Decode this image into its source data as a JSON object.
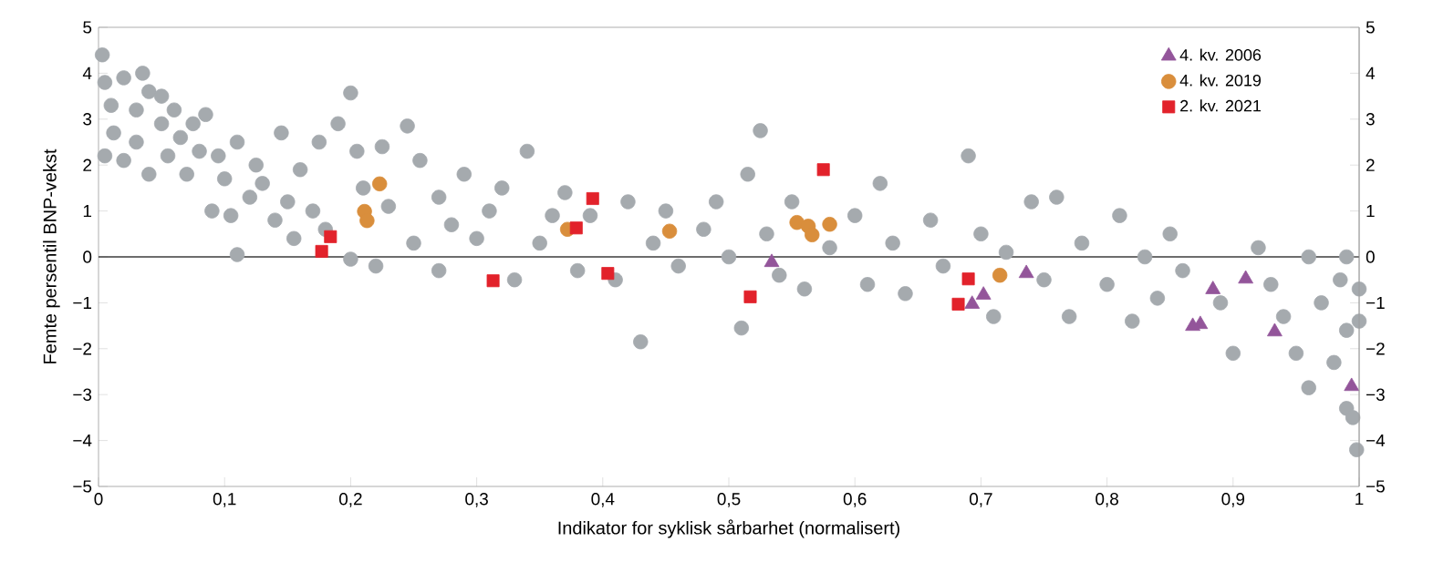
{
  "chart_data": {
    "type": "scatter",
    "xlabel": "Indikator for syklisk sårbarhet (normalisert)",
    "ylabel": "Femte persentil BNP-vekst",
    "xlim": [
      0,
      1
    ],
    "xticks": [
      0,
      {
        "value": 0.1,
        "label": "0,1"
      },
      {
        "value": 0.2,
        "label": "0,2"
      },
      {
        "value": 0.3,
        "label": "0,3"
      },
      {
        "value": 0.4,
        "label": "0,4"
      },
      {
        "value": 0.5,
        "label": "0,5"
      },
      {
        "value": 0.6,
        "label": "0,6"
      },
      {
        "value": 0.7,
        "label": "0,7"
      },
      {
        "value": 0.8,
        "label": "0,8"
      },
      {
        "value": 0.9,
        "label": "0,9"
      },
      1
    ],
    "ylim": [
      -5,
      5
    ],
    "yticks": [
      {
        "value": -5,
        "label": "−5"
      },
      {
        "value": -4,
        "label": "−4"
      },
      {
        "value": -3,
        "label": "−3"
      },
      {
        "value": -2,
        "label": "−2"
      },
      {
        "value": -1,
        "label": "−1"
      },
      0,
      1,
      2,
      3,
      4,
      5
    ],
    "y2lim": [
      -5,
      5
    ],
    "y2ticks": [
      {
        "value": -5,
        "label": "−5"
      },
      {
        "value": -4,
        "label": "−4"
      },
      {
        "value": -3,
        "label": "−3"
      },
      {
        "value": -2,
        "label": "−2"
      },
      {
        "value": -1,
        "label": "−1"
      },
      0,
      1,
      2,
      3,
      4,
      5
    ],
    "grid": false,
    "legend": "top right",
    "ref_lines": [
      {
        "axis": "y",
        "value": 0,
        "color": "#3c3c3c"
      }
    ],
    "series": [
      {
        "color": "#a5aaae",
        "marker": "circle",
        "x": [
          0.003,
          0.005,
          0.01,
          0.005,
          0.012,
          0.02,
          0.02,
          0.03,
          0.03,
          0.035,
          0.04,
          0.04,
          0.05,
          0.05,
          0.055,
          0.06,
          0.065,
          0.07,
          0.075,
          0.08,
          0.085,
          0.09,
          0.095,
          0.1,
          0.105,
          0.11,
          0.11,
          0.12,
          0.125,
          0.13,
          0.14,
          0.145,
          0.15,
          0.155,
          0.16,
          0.17,
          0.175,
          0.18,
          0.19,
          0.2,
          0.2,
          0.205,
          0.21,
          0.22,
          0.225,
          0.23,
          0.245,
          0.25,
          0.255,
          0.27,
          0.27,
          0.28,
          0.29,
          0.3,
          0.31,
          0.32,
          0.33,
          0.34,
          0.35,
          0.36,
          0.37,
          0.38,
          0.39,
          0.41,
          0.42,
          0.43,
          0.44,
          0.45,
          0.46,
          0.48,
          0.49,
          0.5,
          0.51,
          0.515,
          0.525,
          0.53,
          0.54,
          0.55,
          0.56,
          0.58,
          0.6,
          0.61,
          0.62,
          0.63,
          0.64,
          0.66,
          0.67,
          0.69,
          0.7,
          0.71,
          0.72,
          0.74,
          0.76,
          0.75,
          0.77,
          0.78,
          0.8,
          0.81,
          0.82,
          0.83,
          0.84,
          0.85,
          0.86,
          0.89,
          0.9,
          0.92,
          0.93,
          0.94,
          0.95,
          0.96,
          0.96,
          0.97,
          0.98,
          0.985,
          0.99,
          0.99,
          0.995,
          0.998,
          1.0,
          1.0,
          0.99
        ],
        "values": [
          4.4,
          3.8,
          3.3,
          2.2,
          2.7,
          3.9,
          2.1,
          3.2,
          2.5,
          4.0,
          3.6,
          1.8,
          2.9,
          3.5,
          2.2,
          3.2,
          2.6,
          1.8,
          2.9,
          2.3,
          3.1,
          1.0,
          2.2,
          1.7,
          0.9,
          0.05,
          2.5,
          1.3,
          2.0,
          1.6,
          0.8,
          2.7,
          1.2,
          0.4,
          1.9,
          1.0,
          2.5,
          0.6,
          2.9,
          3.57,
          -0.05,
          2.3,
          1.5,
          -0.2,
          2.4,
          1.1,
          2.85,
          0.3,
          2.1,
          -0.3,
          1.3,
          0.7,
          1.8,
          0.4,
          1.0,
          1.5,
          -0.5,
          2.3,
          0.3,
          0.9,
          1.4,
          -0.3,
          0.9,
          -0.5,
          1.2,
          -1.85,
          0.3,
          1.0,
          -0.2,
          0.6,
          1.2,
          0.0,
          -1.55,
          1.8,
          2.75,
          0.5,
          -0.4,
          1.2,
          -0.7,
          0.2,
          0.9,
          -0.6,
          1.6,
          0.3,
          -0.8,
          0.8,
          -0.2,
          2.2,
          0.5,
          -1.3,
          0.1,
          1.2,
          1.3,
          -0.5,
          -1.3,
          0.3,
          -0.6,
          0.9,
          -1.4,
          0.0,
          -0.9,
          0.5,
          -0.3,
          -1.0,
          -2.1,
          0.2,
          -0.6,
          -1.3,
          -2.1,
          0.0,
          -2.85,
          -1.0,
          -2.3,
          -0.5,
          -1.6,
          -3.3,
          -3.5,
          -4.2,
          -0.7,
          -1.4,
          0.0
        ]
      },
      {
        "name": "4. kv. 2006",
        "color": "#93559a",
        "marker": "triangle",
        "x": [
          0.534,
          0.693,
          0.702,
          0.736,
          0.868,
          0.874,
          0.884,
          0.91,
          0.933,
          0.994
        ],
        "values": [
          -0.12,
          -1.03,
          -0.83,
          -0.36,
          -1.51,
          -1.47,
          -0.71,
          -0.48,
          -1.63,
          -2.82
        ]
      },
      {
        "name": "4. kv. 2019",
        "color": "#d98e3c",
        "marker": "circle",
        "x": [
          0.223,
          0.211,
          0.213,
          0.372,
          0.453,
          0.554,
          0.563,
          0.566,
          0.58,
          0.715
        ],
        "values": [
          1.59,
          0.99,
          0.79,
          0.6,
          0.56,
          0.75,
          0.67,
          0.48,
          0.71,
          -0.4
        ]
      },
      {
        "name": "2. kv. 2021",
        "color": "#e2222b",
        "marker": "square",
        "x": [
          0.184,
          0.177,
          0.313,
          0.379,
          0.392,
          0.404,
          0.517,
          0.575,
          0.682,
          0.69
        ],
        "values": [
          0.44,
          0.12,
          -0.52,
          0.63,
          1.27,
          -0.36,
          -0.87,
          1.9,
          -1.03,
          -0.48
        ]
      }
    ]
  }
}
